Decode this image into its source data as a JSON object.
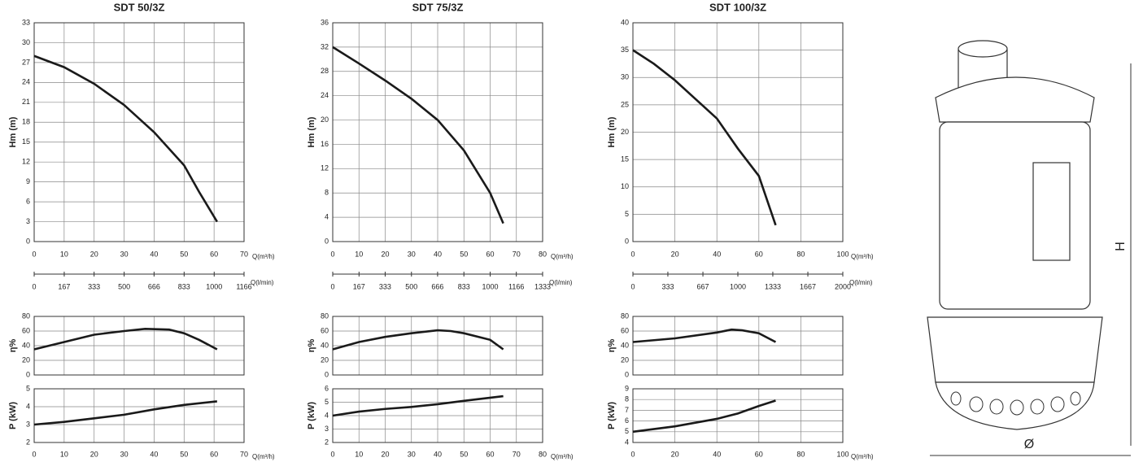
{
  "chart_data": [
    {
      "type": "line",
      "title": "SDT 50/3Z",
      "color": "#1a1a1a",
      "xlim": [
        0,
        70
      ],
      "xticks": [
        0,
        10,
        20,
        30,
        40,
        50,
        60,
        70
      ],
      "xlabel": "Q(m³/h)",
      "x2lim": [
        0,
        1166
      ],
      "x2ticks": [
        0,
        167,
        333,
        500,
        666,
        833,
        1000,
        1166
      ],
      "x2label": "Q(l/min)",
      "head": {
        "ylabel": "Hm   (m)",
        "ylim": [
          0,
          33
        ],
        "yticks": [
          0,
          3,
          6,
          9,
          12,
          15,
          18,
          21,
          24,
          27,
          30,
          33
        ],
        "x": [
          0,
          10,
          20,
          30,
          40,
          50,
          55,
          61
        ],
        "values": [
          28,
          26.3,
          23.8,
          20.6,
          16.5,
          11.5,
          7.5,
          3
        ]
      },
      "efficiency": {
        "ylabel": "η%",
        "ylim": [
          0,
          80
        ],
        "yticks": [
          0,
          20,
          40,
          60,
          80
        ],
        "x": [
          0,
          10,
          20,
          30,
          37,
          45,
          50,
          55,
          61
        ],
        "values": [
          35,
          45,
          55,
          60,
          63,
          62,
          57,
          48,
          35
        ]
      },
      "power": {
        "ylabel": "P   (kW)",
        "ylim": [
          2,
          5
        ],
        "yticks": [
          2,
          3,
          4,
          5
        ],
        "x": [
          0,
          10,
          20,
          30,
          40,
          50,
          61
        ],
        "values": [
          3.0,
          3.15,
          3.35,
          3.55,
          3.85,
          4.1,
          4.3
        ]
      }
    },
    {
      "type": "line",
      "title": "SDT 75/3Z",
      "color": "#1a1a1a",
      "xlim": [
        0,
        80
      ],
      "xticks": [
        0,
        10,
        20,
        30,
        40,
        50,
        60,
        70,
        80
      ],
      "xlabel": "Q(m³/h)",
      "x2lim": [
        0,
        1333
      ],
      "x2ticks": [
        0,
        167,
        333,
        500,
        666,
        833,
        1000,
        1166,
        1333
      ],
      "x2label": "Q(l/min)",
      "head": {
        "ylabel": "Hm   (m)",
        "ylim": [
          0,
          36
        ],
        "yticks": [
          0,
          4,
          8,
          12,
          16,
          20,
          24,
          28,
          32,
          36
        ],
        "x": [
          0,
          10,
          20,
          30,
          40,
          50,
          60,
          65
        ],
        "values": [
          32,
          29.3,
          26.5,
          23.5,
          20,
          15,
          8,
          3
        ]
      },
      "efficiency": {
        "ylabel": "η%",
        "ylim": [
          0,
          80
        ],
        "yticks": [
          0,
          20,
          40,
          60,
          80
        ],
        "x": [
          0,
          10,
          20,
          30,
          40,
          45,
          50,
          60,
          65
        ],
        "values": [
          35,
          45,
          52,
          57,
          61,
          60,
          57,
          48,
          35
        ]
      },
      "power": {
        "ylabel": "P   (kW)",
        "ylim": [
          2,
          6
        ],
        "yticks": [
          2,
          3,
          4,
          5,
          6
        ],
        "x": [
          0,
          10,
          20,
          30,
          40,
          50,
          65
        ],
        "values": [
          4.0,
          4.3,
          4.5,
          4.65,
          4.85,
          5.1,
          5.45
        ]
      }
    },
    {
      "type": "line",
      "title": "SDT 100/3Z",
      "color": "#1a1a1a",
      "xlim": [
        0,
        100
      ],
      "xticks": [
        0,
        20,
        40,
        60,
        80,
        100
      ],
      "xlabel": "Q(m³/h)",
      "x2lim": [
        0,
        2000
      ],
      "x2ticks": [
        0,
        333,
        667,
        1000,
        1333,
        1667,
        2000
      ],
      "x2label": "Q(l/min)",
      "head": {
        "ylabel": "Hm   (m)",
        "ylim": [
          0,
          40
        ],
        "yticks": [
          0,
          5,
          10,
          15,
          20,
          25,
          30,
          35,
          40
        ],
        "x": [
          0,
          10,
          20,
          30,
          40,
          50,
          60,
          68
        ],
        "values": [
          35,
          32.5,
          29.5,
          26,
          22.5,
          17,
          12,
          3
        ]
      },
      "efficiency": {
        "ylabel": "η%",
        "ylim": [
          0,
          80
        ],
        "yticks": [
          0,
          20,
          40,
          60,
          80
        ],
        "x": [
          0,
          20,
          40,
          47,
          52,
          60,
          68
        ],
        "values": [
          45,
          50,
          58,
          62,
          61,
          57,
          45
        ]
      },
      "power": {
        "ylabel": "P   (kW)",
        "ylim": [
          4,
          9
        ],
        "yticks": [
          4,
          5,
          6,
          7,
          8,
          9
        ],
        "x": [
          0,
          20,
          40,
          50,
          60,
          68
        ],
        "values": [
          5.0,
          5.5,
          6.2,
          6.7,
          7.4,
          7.9
        ]
      }
    }
  ],
  "drawing": {
    "height_label": "H",
    "diameter_label": "Ø"
  }
}
